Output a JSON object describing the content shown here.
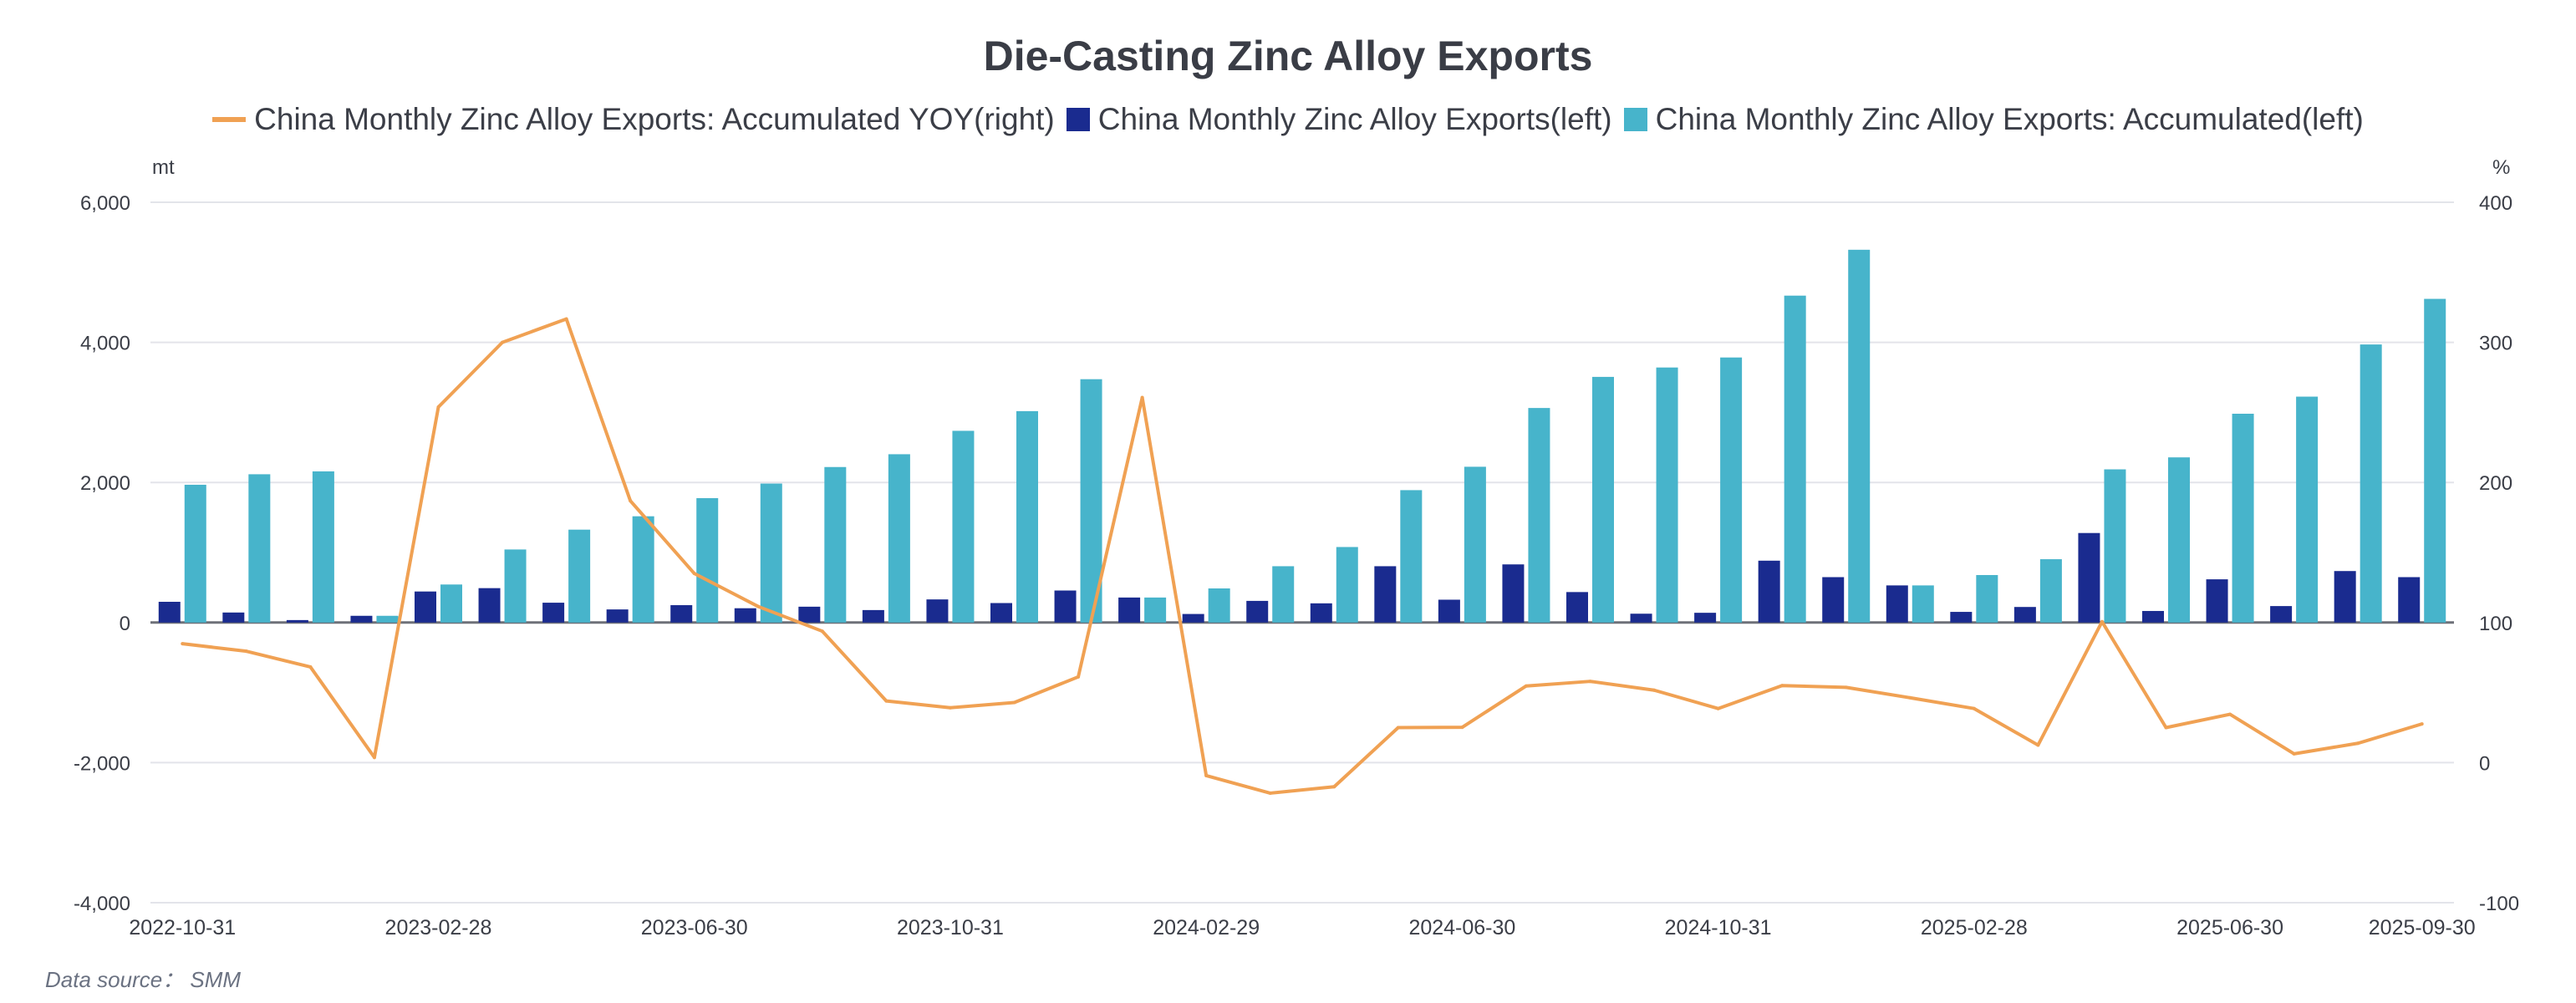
{
  "chart_data": {
    "type": "bar+line",
    "title": "Die-Casting Zinc Alloy Exports",
    "left_unit": "mt",
    "right_unit": "%",
    "left_ylim": [
      -4000,
      6000
    ],
    "left_ticks": [
      "6,000",
      "4,000",
      "2,000",
      "0",
      "-2,000",
      "-4,000"
    ],
    "left_tick_values": [
      6000,
      4000,
      2000,
      0,
      -2000,
      -4000
    ],
    "right_ylim": [
      -100,
      400
    ],
    "right_ticks": [
      "400",
      "300",
      "200",
      "100",
      "0",
      "-100"
    ],
    "right_tick_values": [
      400,
      300,
      200,
      100,
      0,
      -100
    ],
    "categories": [
      "2022-10-31",
      "2022-11-30",
      "2022-12-31",
      "2023-01-31",
      "2023-02-28",
      "2023-03-31",
      "2023-04-30",
      "2023-05-31",
      "2023-06-30",
      "2023-07-31",
      "2023-08-31",
      "2023-09-30",
      "2023-10-31",
      "2023-11-30",
      "2023-12-31",
      "2024-01-31",
      "2024-02-29",
      "2024-03-31",
      "2024-04-30",
      "2024-05-31",
      "2024-06-30",
      "2024-07-31",
      "2024-08-31",
      "2024-09-30",
      "2024-10-31",
      "2024-11-30",
      "2024-12-31",
      "2025-01-31",
      "2025-02-28",
      "2025-03-31",
      "2025-04-30",
      "2025-05-31",
      "2025-06-30",
      "2025-07-31",
      "2025-08-31",
      "2025-09-30"
    ],
    "x_tick_labels": [
      {
        "index": 0,
        "label": "2022-10-31"
      },
      {
        "index": 4,
        "label": "2023-02-28"
      },
      {
        "index": 8,
        "label": "2023-06-30"
      },
      {
        "index": 12,
        "label": "2023-10-31"
      },
      {
        "index": 16,
        "label": "2024-02-29"
      },
      {
        "index": 20,
        "label": "2024-06-30"
      },
      {
        "index": 24,
        "label": "2024-10-31"
      },
      {
        "index": 28,
        "label": "2025-02-28"
      },
      {
        "index": 32,
        "label": "2025-06-30"
      },
      {
        "index": 35,
        "label": "2025-09-30"
      }
    ],
    "series": [
      {
        "name": "China Monthly Zinc Alloy Exports: Accumulated YOY(right)",
        "type": "line",
        "axis": "right",
        "color": "#f0a153",
        "values": [
          84.9,
          79.5,
          68.3,
          3.7,
          253.8,
          300,
          316.7,
          186.9,
          135,
          111.4,
          93.8,
          44,
          39.2,
          42.9,
          61.2,
          260.6,
          -9.3,
          -21.8,
          -17.2,
          25,
          25.2,
          54.7,
          58,
          51.7,
          38.6,
          55,
          53.7,
          46.3,
          38.6,
          12.5,
          100.6,
          25,
          34.5,
          6.3,
          13.8,
          27.6
        ]
      },
      {
        "name": "China Monthly Zinc Alloy Exports(left)",
        "type": "bar",
        "axis": "left",
        "color": "#1a2b8f",
        "values": [
          296,
          143,
          35,
          96,
          443,
          491,
          283,
          187,
          248,
          204,
          226,
          178,
          330,
          278,
          457,
          357,
          122,
          309,
          274,
          804,
          326,
          830,
          435,
          126,
          139,
          883,
          648,
          530,
          152,
          222,
          1278,
          165,
          617,
          235,
          735,
          648
        ]
      },
      {
        "name": "China Monthly Zinc Alloy Exports: Accumulated(left)",
        "type": "bar",
        "axis": "left",
        "color": "#47b4cb",
        "values": [
          1967,
          2117,
          2158,
          96,
          543,
          1043,
          1326,
          1517,
          1776,
          1984,
          2220,
          2403,
          2737,
          3018,
          3474,
          357,
          487,
          804,
          1078,
          1890,
          2224,
          3063,
          3507,
          3641,
          3784,
          4667,
          5322,
          530,
          678,
          904,
          2187,
          2358,
          2981,
          3225,
          3970,
          4621
        ]
      }
    ],
    "grid": true,
    "legend_position": "top-center",
    "source": "Data source：  SMM"
  }
}
